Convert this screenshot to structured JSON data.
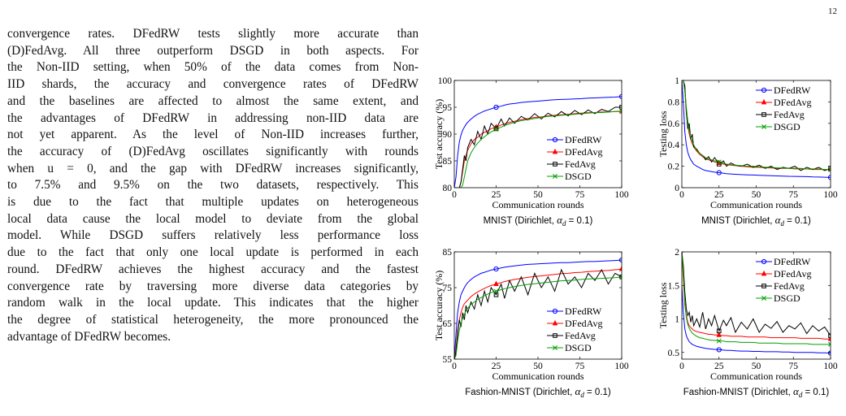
{
  "page": {
    "number": "12"
  },
  "body_text": [
    "convergence rates. DFedRW tests slightly more accurate than",
    "(D)FedAvg. All three outperform DSGD in both aspects. For",
    "the Non-IID setting, when 50% of the data comes from Non-",
    "IID shards, the accuracy and convergence rates of DFedRW",
    "and the baselines are affected to almost the same extent, and",
    "the advantages of DFedRW in addressing non-IID data are",
    "not yet apparent. As the level of Non-IID increases further,",
    "the accuracy of (D)FedAvg oscillates significantly with rounds",
    "when u = 0, and the gap with DFedRW increases significantly,",
    "to 7.5% and 9.5% on the two datasets, respectively. This",
    "is due to the fact that multiple updates on heterogeneous",
    "local data cause the local model to deviate from the global",
    "model. While DSGD suffers relatively less performance loss",
    "due to the fact that only one local update is performed in each",
    "round. DFedRW achieves the highest accuracy and the fastest",
    "convergence rate by traversing more diverse data categories by",
    "random walk in the local update. This indicates that the higher",
    "the degree of statistical heterogeneity, the more pronounced the",
    "advantage of DFedRW becomes."
  ],
  "colors": {
    "DFedRW": "#0000ff",
    "DFedAvg": "#ff0000",
    "FedAvg": "#000000",
    "DSGD": "#00a000"
  },
  "chart_data": [
    {
      "type": "line",
      "caption_prefix": "MNIST (Dirichlet, ",
      "caption_math": "α",
      "caption_sub": "d",
      "caption_suffix": " = 0.1)",
      "xlabel": "Communication rounds",
      "ylabel": "Test accuracy (%)",
      "xlim": [
        0,
        100
      ],
      "ylim": [
        80,
        100
      ],
      "xticks": [
        0,
        25,
        50,
        75,
        100
      ],
      "yticks": [
        80,
        85,
        90,
        95,
        100
      ],
      "legend": "bottom-right",
      "x": [
        0,
        1,
        2,
        3,
        4,
        5,
        6,
        7,
        8,
        10,
        12,
        14,
        16,
        18,
        20,
        22,
        25,
        28,
        30,
        33,
        36,
        40,
        44,
        48,
        52,
        56,
        60,
        64,
        68,
        72,
        76,
        80,
        84,
        88,
        92,
        96,
        100
      ],
      "series": [
        {
          "name": "DFedRW",
          "marker": "circle",
          "values": [
            80,
            82,
            86,
            88.5,
            89.8,
            90.7,
            91.3,
            91.8,
            92.2,
            92.8,
            93.3,
            93.7,
            94,
            94.3,
            94.5,
            94.7,
            95,
            95.2,
            95.4,
            95.6,
            95.7,
            95.9,
            96,
            96.1,
            96.2,
            96.3,
            96.4,
            96.45,
            96.5,
            96.55,
            96.6,
            96.7,
            96.75,
            96.8,
            96.85,
            96.9,
            97
          ]
        },
        {
          "name": "DFedAvg",
          "marker": "triangle",
          "values": [
            80,
            80,
            80,
            80,
            81,
            83,
            85,
            86,
            87,
            88.2,
            89,
            89.4,
            90,
            90.3,
            90.6,
            91,
            91.3,
            91.7,
            91.9,
            92.2,
            92.4,
            92.7,
            92.9,
            93.1,
            93.2,
            93.4,
            93.5,
            93.6,
            93.7,
            93.8,
            93.9,
            94,
            94,
            94.1,
            94.1,
            94.2,
            94.2
          ]
        },
        {
          "name": "FedAvg",
          "marker": "square",
          "values": [
            80,
            80,
            80,
            80,
            81,
            83.5,
            86,
            85,
            87.5,
            89,
            88,
            90.5,
            89,
            91.5,
            90,
            92,
            91,
            92.8,
            91.5,
            93,
            92,
            93.3,
            92.6,
            93.8,
            92.8,
            93.9,
            93.2,
            94.2,
            93.4,
            94.4,
            93.6,
            94.5,
            93.8,
            94.6,
            94.2,
            95,
            95
          ]
        },
        {
          "name": "DSGD",
          "marker": "x",
          "values": [
            80,
            80,
            80,
            80,
            80,
            80.5,
            82,
            83.5,
            85,
            86.5,
            87.5,
            88.3,
            89,
            89.5,
            90,
            90.4,
            90.9,
            91.3,
            91.6,
            91.9,
            92.2,
            92.5,
            92.7,
            92.9,
            93.1,
            93.3,
            93.4,
            93.5,
            93.6,
            93.7,
            93.8,
            93.9,
            94,
            94,
            94.1,
            94.2,
            94.3
          ]
        }
      ]
    },
    {
      "type": "line",
      "caption_prefix": "MNIST (Dirichlet, ",
      "caption_math": "α",
      "caption_sub": "d",
      "caption_suffix": " = 0.1)",
      "xlabel": "Communication rounds",
      "ylabel": "Testing loss",
      "xlim": [
        0,
        100
      ],
      "ylim": [
        0,
        1
      ],
      "xticks": [
        0,
        25,
        50,
        75,
        100
      ],
      "yticks": [
        0,
        0.2,
        0.4,
        0.6,
        0.8,
        1
      ],
      "legend": "top-right",
      "x": [
        0,
        1,
        2,
        3,
        4,
        5,
        6,
        7,
        8,
        10,
        12,
        14,
        16,
        18,
        20,
        22,
        25,
        28,
        30,
        33,
        36,
        40,
        44,
        48,
        52,
        56,
        60,
        64,
        68,
        72,
        76,
        80,
        84,
        88,
        92,
        96,
        100
      ],
      "series": [
        {
          "name": "DFedRW",
          "marker": "circle",
          "values": [
            1,
            0.8,
            0.52,
            0.4,
            0.33,
            0.29,
            0.26,
            0.24,
            0.22,
            0.2,
            0.185,
            0.17,
            0.16,
            0.155,
            0.15,
            0.145,
            0.14,
            0.135,
            0.13,
            0.128,
            0.125,
            0.122,
            0.12,
            0.118,
            0.116,
            0.114,
            0.112,
            0.11,
            0.108,
            0.106,
            0.105,
            0.104,
            0.103,
            0.1,
            0.099,
            0.098,
            0.095
          ]
        },
        {
          "name": "DFedAvg",
          "marker": "triangle",
          "values": [
            1,
            1,
            0.9,
            0.7,
            0.58,
            0.5,
            0.45,
            0.41,
            0.38,
            0.34,
            0.31,
            0.29,
            0.27,
            0.26,
            0.25,
            0.24,
            0.23,
            0.22,
            0.215,
            0.21,
            0.205,
            0.2,
            0.195,
            0.19,
            0.19,
            0.185,
            0.185,
            0.18,
            0.18,
            0.18,
            0.175,
            0.175,
            0.175,
            0.17,
            0.17,
            0.17,
            0.17
          ]
        },
        {
          "name": "FedAvg",
          "marker": "square",
          "values": [
            1,
            1,
            0.95,
            0.72,
            0.55,
            0.6,
            0.45,
            0.5,
            0.38,
            0.36,
            0.32,
            0.3,
            0.26,
            0.29,
            0.24,
            0.28,
            0.22,
            0.25,
            0.2,
            0.23,
            0.21,
            0.2,
            0.22,
            0.19,
            0.21,
            0.18,
            0.2,
            0.17,
            0.19,
            0.18,
            0.2,
            0.16,
            0.19,
            0.17,
            0.19,
            0.16,
            0.18
          ]
        },
        {
          "name": "DSGD",
          "marker": "x",
          "values": [
            1,
            1,
            0.9,
            0.75,
            0.62,
            0.53,
            0.47,
            0.43,
            0.4,
            0.35,
            0.32,
            0.3,
            0.28,
            0.27,
            0.26,
            0.25,
            0.24,
            0.23,
            0.22,
            0.215,
            0.21,
            0.205,
            0.2,
            0.2,
            0.195,
            0.19,
            0.19,
            0.185,
            0.185,
            0.18,
            0.18,
            0.18,
            0.175,
            0.175,
            0.175,
            0.17,
            0.17
          ]
        }
      ]
    },
    {
      "type": "line",
      "caption_prefix": "Fashion-MNIST (Dirichlet, ",
      "caption_math": "α",
      "caption_sub": "d",
      "caption_suffix": " = 0.1)",
      "xlabel": "Communication rounds",
      "ylabel": "Test accuracy (%)",
      "xlim": [
        0,
        100
      ],
      "ylim": [
        55,
        85
      ],
      "xticks": [
        0,
        25,
        50,
        75,
        100
      ],
      "yticks": [
        55,
        65,
        75,
        85
      ],
      "legend": "bottom-right",
      "x": [
        0,
        1,
        2,
        3,
        4,
        5,
        6,
        7,
        8,
        10,
        12,
        14,
        16,
        18,
        20,
        22,
        25,
        28,
        30,
        33,
        36,
        40,
        44,
        48,
        52,
        56,
        60,
        64,
        68,
        72,
        76,
        80,
        84,
        88,
        92,
        96,
        100
      ],
      "series": [
        {
          "name": "DFedRW",
          "marker": "circle",
          "values": [
            55,
            62,
            68,
            71,
            73,
            74,
            75,
            75.8,
            76.4,
            77.3,
            78,
            78.5,
            79,
            79.3,
            79.6,
            79.9,
            80.2,
            80.5,
            80.7,
            80.9,
            81.1,
            81.3,
            81.5,
            81.6,
            81.7,
            81.8,
            81.9,
            82,
            82,
            82.1,
            82.2,
            82.3,
            82.3,
            82.4,
            82.5,
            82.6,
            82.7
          ]
        },
        {
          "name": "DFedAvg",
          "marker": "triangle",
          "values": [
            55,
            58,
            63,
            66,
            68,
            69.5,
            70.5,
            71,
            71.5,
            72.5,
            73.2,
            73.8,
            74.3,
            74.8,
            75.2,
            75.6,
            76,
            76.4,
            76.7,
            77,
            77.3,
            77.6,
            77.9,
            78.1,
            78.3,
            78.5,
            78.7,
            78.9,
            79,
            79.2,
            79.3,
            79.5,
            79.6,
            79.7,
            79.8,
            80,
            80.2
          ]
        },
        {
          "name": "FedAvg",
          "marker": "square",
          "values": [
            55,
            57,
            62,
            66,
            64,
            68,
            66,
            70,
            68,
            71,
            69,
            73,
            70,
            74,
            71,
            75,
            73,
            76,
            72,
            77,
            74,
            78,
            73,
            79,
            75,
            78,
            74,
            80,
            76,
            78,
            75,
            79,
            77,
            80,
            76,
            79,
            78
          ]
        },
        {
          "name": "DSGD",
          "marker": "x",
          "values": [
            55,
            56,
            60,
            63,
            65,
            66.5,
            67.5,
            68.5,
            69.3,
            70.3,
            71,
            71.7,
            72.2,
            72.7,
            73.2,
            73.6,
            74,
            74.4,
            74.7,
            75,
            75.3,
            75.6,
            75.9,
            76.1,
            76.3,
            76.5,
            76.7,
            76.9,
            77,
            77.1,
            77.3,
            77.4,
            77.5,
            77.6,
            77.7,
            77.8,
            78
          ]
        }
      ]
    },
    {
      "type": "line",
      "caption_prefix": "Fashion-MNIST (Dirichlet, ",
      "caption_math": "α",
      "caption_sub": "d",
      "caption_suffix": " = 0.1)",
      "xlabel": "Communication rounds",
      "ylabel": "Testing loss",
      "xlim": [
        0,
        100
      ],
      "ylim": [
        0.4,
        2
      ],
      "xticks": [
        0,
        25,
        50,
        75,
        100
      ],
      "yticks": [
        0.5,
        1,
        1.5,
        2
      ],
      "legend": "top-right",
      "x": [
        0,
        1,
        2,
        3,
        4,
        5,
        6,
        7,
        8,
        10,
        12,
        14,
        16,
        18,
        20,
        22,
        25,
        28,
        30,
        33,
        36,
        40,
        44,
        48,
        52,
        56,
        60,
        64,
        68,
        72,
        76,
        80,
        84,
        88,
        92,
        96,
        100
      ],
      "series": [
        {
          "name": "DFedRW",
          "marker": "circle",
          "values": [
            1.5,
            1.1,
            0.85,
            0.75,
            0.7,
            0.66,
            0.64,
            0.62,
            0.61,
            0.59,
            0.58,
            0.57,
            0.56,
            0.555,
            0.55,
            0.545,
            0.54,
            0.535,
            0.53,
            0.53,
            0.525,
            0.52,
            0.52,
            0.515,
            0.515,
            0.51,
            0.51,
            0.51,
            0.505,
            0.505,
            0.5,
            0.5,
            0.5,
            0.5,
            0.495,
            0.495,
            0.49
          ]
        },
        {
          "name": "DFedAvg",
          "marker": "triangle",
          "values": [
            2,
            1.6,
            1.2,
            1.05,
            0.95,
            0.9,
            0.87,
            0.85,
            0.83,
            0.81,
            0.8,
            0.79,
            0.78,
            0.77,
            0.77,
            0.76,
            0.76,
            0.75,
            0.75,
            0.74,
            0.74,
            0.74,
            0.73,
            0.73,
            0.73,
            0.73,
            0.72,
            0.72,
            0.72,
            0.72,
            0.72,
            0.71,
            0.71,
            0.71,
            0.71,
            0.7,
            0.7
          ]
        },
        {
          "name": "FedAvg",
          "marker": "square",
          "values": [
            2,
            1.8,
            1.4,
            1.15,
            1.05,
            1.1,
            0.95,
            1.05,
            0.9,
            1.0,
            0.88,
            1.1,
            0.85,
            1.0,
            0.9,
            1.05,
            0.82,
            0.98,
            0.9,
            1.02,
            0.8,
            0.95,
            0.85,
            1.0,
            0.8,
            0.92,
            0.86,
            0.96,
            0.8,
            0.9,
            0.85,
            0.94,
            0.78,
            0.9,
            0.82,
            0.88,
            0.75
          ]
        },
        {
          "name": "DSGD",
          "marker": "x",
          "values": [
            2,
            1.7,
            1.25,
            1.02,
            0.92,
            0.86,
            0.82,
            0.79,
            0.77,
            0.74,
            0.72,
            0.71,
            0.7,
            0.69,
            0.68,
            0.68,
            0.67,
            0.67,
            0.66,
            0.66,
            0.66,
            0.65,
            0.65,
            0.65,
            0.64,
            0.64,
            0.64,
            0.64,
            0.63,
            0.63,
            0.63,
            0.63,
            0.63,
            0.62,
            0.62,
            0.62,
            0.62
          ]
        }
      ]
    }
  ]
}
